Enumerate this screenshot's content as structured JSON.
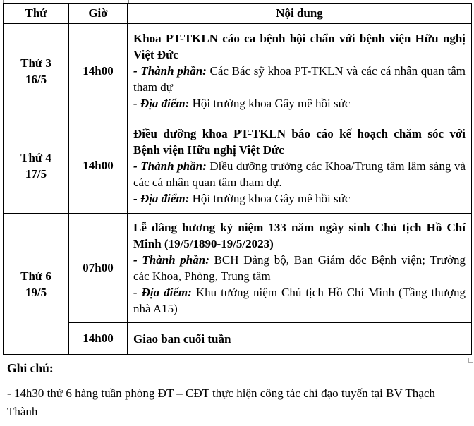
{
  "table": {
    "headers": {
      "day": "Thứ",
      "time": "Giờ",
      "content": "Nội dung"
    },
    "rows": [
      {
        "day": "Thứ 3",
        "date": "16/5",
        "time": "14h00",
        "title": "Khoa PT-TKLN cáo ca bệnh hội chẩn với bệnh viện Hữu nghị Việt Đức",
        "participants_label": "- Thành phần:",
        "participants": "Các Bác sỹ khoa PT-TKLN và các cá nhân quan tâm tham dự",
        "location_label": "- Địa điểm:",
        "location": "Hội trường khoa Gây mê hồi sức"
      },
      {
        "day": "Thứ 4",
        "date": "17/5",
        "time": "14h00",
        "title": "Điều dưỡng khoa  PT-TKLN báo cáo kế hoạch chăm sóc với Bệnh viện Hữu nghị Việt Đức",
        "participants_label": "- Thành phần:",
        "participants": "Điều dưỡng trưởng các Khoa/Trung tâm lâm sàng và các cá nhân quan tâm tham dự.",
        "location_label": "- Địa điểm:",
        "location": "Hội trường khoa Gây mê hồi sức"
      },
      {
        "day": "Thứ 6",
        "date": "19/5",
        "time": "07h00",
        "title": "Lễ dâng hương kỷ niệm 133 năm ngày sinh Chủ tịch Hồ Chí Minh (19/5/1890-19/5/2023)",
        "participants_label": "- Thành phần:",
        "participants": "BCH Đảng bộ, Ban Giám đốc Bệnh viện; Trưởng các Khoa, Phòng, Trung tâm",
        "location_label": "- Địa điểm:",
        "location": "Khu tưởng niệm Chủ tịch Hồ Chí Minh (Tầng thượng nhà A15)"
      },
      {
        "time": "14h00",
        "title": "Giao ban cuối tuần"
      }
    ]
  },
  "notes": {
    "heading": "Ghi chú:",
    "bullet": "-",
    "text": "14h30 thứ 6 hàng tuần phòng ĐT – CĐT thực hiện công tác chỉ đạo tuyến tại BV Thạch Thành"
  }
}
